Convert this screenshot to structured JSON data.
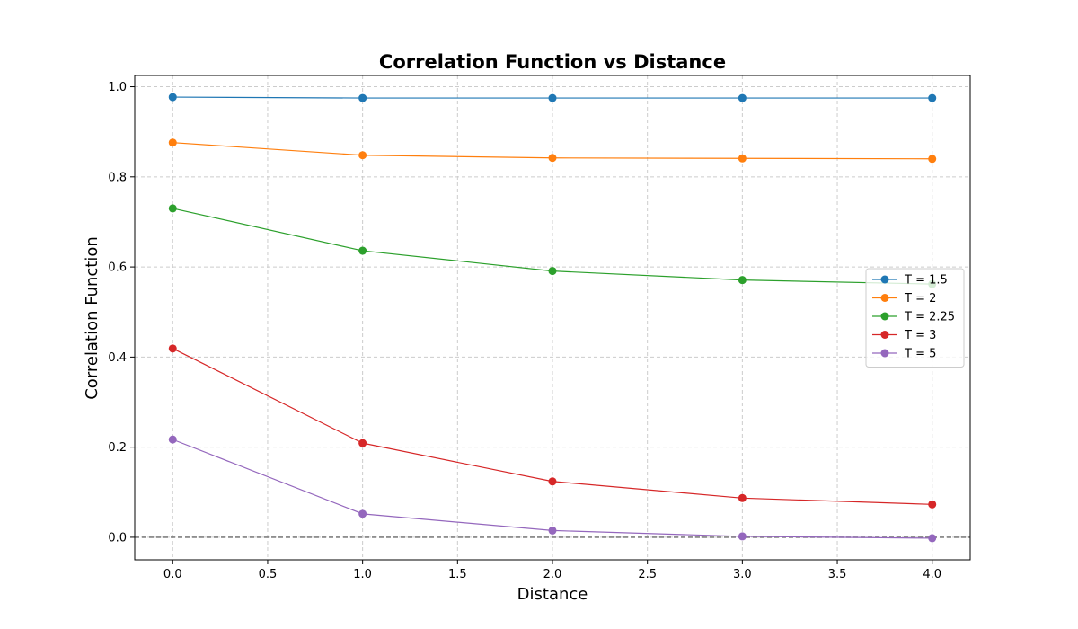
{
  "chart_data": {
    "type": "line",
    "title": "Correlation Function vs Distance",
    "xlabel": "Distance",
    "ylabel": "Correlation Function",
    "xlim": [
      -0.2,
      4.2
    ],
    "ylim": [
      -0.05,
      1.025
    ],
    "xticks": [
      "0.0",
      "0.5",
      "1.0",
      "1.5",
      "2.0",
      "2.5",
      "3.0",
      "3.5",
      "4.0"
    ],
    "yticks": [
      "0.0",
      "0.2",
      "0.4",
      "0.6",
      "0.8",
      "1.0"
    ],
    "grid": true,
    "legend_position": "center-right",
    "reference_line": {
      "y": 0,
      "style": "dashed",
      "color": "#808080"
    },
    "x": [
      0,
      1,
      2,
      3,
      4
    ],
    "series": [
      {
        "name": "T = 1.5",
        "color": "#1f77b4",
        "values": [
          0.977,
          0.975,
          0.975,
          0.975,
          0.975
        ]
      },
      {
        "name": "T = 2",
        "color": "#ff7f0e",
        "values": [
          0.876,
          0.848,
          0.842,
          0.841,
          0.84
        ]
      },
      {
        "name": "T = 2.25",
        "color": "#2ca02c",
        "values": [
          0.73,
          0.636,
          0.591,
          0.571,
          0.562
        ]
      },
      {
        "name": "T = 3",
        "color": "#d62728",
        "values": [
          0.419,
          0.209,
          0.124,
          0.087,
          0.073
        ]
      },
      {
        "name": "T = 5",
        "color": "#9467bd",
        "values": [
          0.217,
          0.052,
          0.015,
          0.002,
          -0.002
        ]
      }
    ]
  }
}
